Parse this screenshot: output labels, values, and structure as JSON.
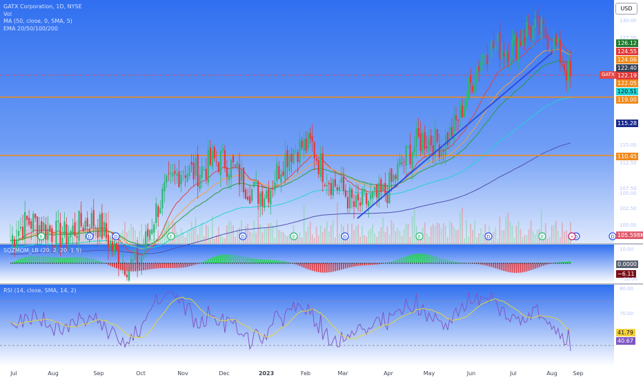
{
  "legend": {
    "title": "GATX Corporation, 1D, NYSE",
    "vol": "Vol",
    "ma": "MA (50, close, 0, SMA, 5)",
    "ema": "EMA 20/50/100/200",
    "sqz": "SQZMOM_LB (20, 2, 20, 1.5)",
    "rsi": "RSI (14, close, SMA, 14, 2)"
  },
  "currency_button": "USD",
  "symbol_tag": "GATX",
  "price_tags": [
    {
      "text": "126.12",
      "bg": "#1e7a2e",
      "y": 62
    },
    {
      "text": "124.55",
      "bg": "#e03a3a",
      "y": 74
    },
    {
      "text": "124.06",
      "bg": "#f08a1c",
      "y": 86
    },
    {
      "text": "122.40",
      "bg": "#374459",
      "y": 98
    },
    {
      "text": "122.19",
      "bg": "#e03a3a",
      "y": 109
    },
    {
      "text": "122.05",
      "bg": "#f08a1c",
      "y": 120
    },
    {
      "text": "120.51",
      "bg": "#22d3d3",
      "y": 132
    },
    {
      "text": "119.00",
      "bg": "#f08a1c",
      "y": 144
    },
    {
      "text": "115.28",
      "bg": "#1b2a8c",
      "y": 178
    },
    {
      "text": "110.45",
      "bg": "#f08a1c",
      "y": 226
    },
    {
      "text": "105.598K",
      "bg": "#e05a6b",
      "y": 340
    },
    {
      "text": "0.0000",
      "bg": "#596173",
      "y": 382
    },
    {
      "text": "−6.11",
      "bg": "#7a0f18",
      "y": 396
    },
    {
      "text": "41.79",
      "bg": "#f4d03f",
      "y": 481
    },
    {
      "text": "40.67",
      "bg": "#7e57c2",
      "y": 493
    }
  ],
  "price_axis_ticks": [
    "130.00",
    "127.50",
    "115.00",
    "112.50",
    "107.50",
    "105.00",
    "102.50",
    "100.00"
  ],
  "sqz_axis_ticks": [
    "10.00",
    "−10.00"
  ],
  "rsi_axis_ticks": [
    "80.00",
    "70.00"
  ],
  "time_axis": [
    "Jul",
    "Aug",
    "Sep",
    "Oct",
    "Nov",
    "Dec",
    "2023",
    "Feb",
    "Mar",
    "Apr",
    "May",
    "Jun",
    "Jul",
    "Aug",
    "Sep"
  ],
  "event_markers": [
    "E",
    "D",
    "D",
    "E",
    "D",
    "E",
    "D",
    "E",
    "D",
    "E",
    "D",
    "D"
  ],
  "colors": {
    "bg_top": "#2f6ff0",
    "bg_bottom": "#ffffff",
    "up_candle": "#2bb673",
    "down_candle": "#e2393c",
    "trendline": "#2850e0",
    "hline": "#f08a1c",
    "ema20": "#e04040",
    "ema50": "#2a9a3a",
    "ema100": "#22d3d3",
    "ema200": "#5050b0",
    "ma50": "#f4a13b",
    "rsi": "#7e57c2",
    "rsi_ma": "#e8d43a",
    "sqz_up": "#2bd15a",
    "sqz_down": "#e2393c"
  },
  "chart_data": {
    "type": "candlestick",
    "symbol": "GATX Corporation",
    "interval": "1D",
    "exchange": "NYSE",
    "currency": "USD",
    "horizontal_levels": [
      119.0,
      110.45,
      122.19
    ],
    "trendline": {
      "from": {
        "date": "2023-03-13",
        "price": 101.2
      },
      "to": {
        "date": "2023-07-27",
        "price": 125.5
      }
    },
    "price_closes_approx": [
      {
        "date": "2022-07",
        "price": 98
      },
      {
        "date": "2022-08",
        "price": 100.5
      },
      {
        "date": "2022-09",
        "price": 99
      },
      {
        "date": "2022-10",
        "price": 95
      },
      {
        "date": "2022-11",
        "price": 110
      },
      {
        "date": "2022-12",
        "price": 108
      },
      {
        "date": "2023-01",
        "price": 106
      },
      {
        "date": "2023-02",
        "price": 113
      },
      {
        "date": "2023-03",
        "price": 101
      },
      {
        "date": "2023-04",
        "price": 109
      },
      {
        "date": "2023-05",
        "price": 113
      },
      {
        "date": "2023-06",
        "price": 124
      },
      {
        "date": "2023-07",
        "price": 130
      },
      {
        "date": "2023-08",
        "price": 122.19
      }
    ],
    "latest": {
      "price": 122.19,
      "volume": "105.598K",
      "rsi": 40.67,
      "rsi_ma": 41.79,
      "sqz_mom": -6.11
    },
    "indicator_values": {
      "ema_a": 126.12,
      "ema_b": 124.55,
      "ma50": 124.06,
      "ema_c": 122.4,
      "ema_d": 122.05,
      "ema_e": 120.51,
      "ema200": 115.28
    }
  }
}
